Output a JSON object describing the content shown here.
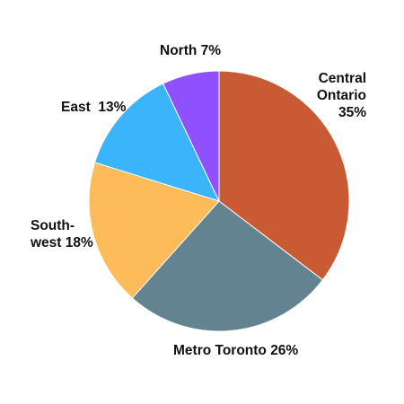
{
  "chart_data": {
    "type": "pie",
    "slices": [
      {
        "name": "Central Ontario",
        "value": 35,
        "color": "#c85a34",
        "label_lines": [
          "Central",
          "Ontario",
          "35%"
        ]
      },
      {
        "name": "Metro Toronto",
        "value": 26,
        "color": "#62838f",
        "label_lines": [
          "Metro Toronto 26%"
        ]
      },
      {
        "name": "South-west",
        "value": 18,
        "color": "#fdbb59",
        "label_lines": [
          "South-",
          "west 18%"
        ]
      },
      {
        "name": "East",
        "value": 13,
        "color": "#3ab5fb",
        "label_lines": [
          "East  13%"
        ]
      },
      {
        "name": "North",
        "value": 7,
        "color": "#8f51fe",
        "label_lines": [
          "North 7%"
        ]
      }
    ],
    "start_angle_deg": 0,
    "direction": "clockwise"
  }
}
